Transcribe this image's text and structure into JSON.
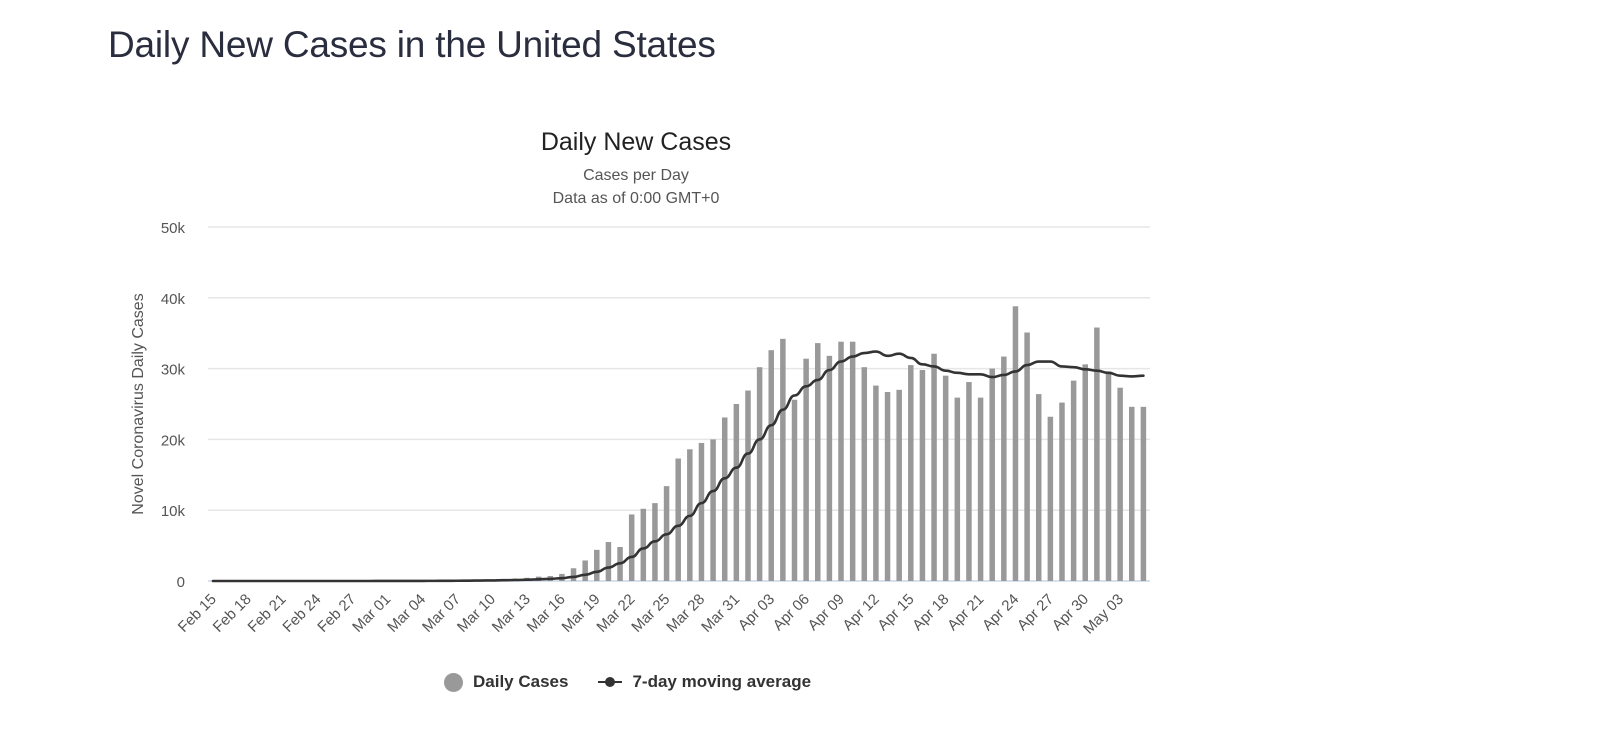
{
  "page": {
    "title": "Daily New Cases in the United States"
  },
  "chart_data": {
    "type": "bar",
    "title": "Daily New Cases",
    "subtitle": "Cases per Day",
    "subtitle2": "Data as of 0:00 GMT+0",
    "xlabel": "",
    "ylabel": "Novel Coronavirus Daily Cases",
    "ylim": [
      0,
      50000
    ],
    "yticks": [
      0,
      10000,
      20000,
      30000,
      40000,
      50000
    ],
    "ytick_labels": [
      "0",
      "10k",
      "20k",
      "30k",
      "40k",
      "50k"
    ],
    "grid": true,
    "legend_position": "bottom",
    "xtick_labels": [
      "Feb 15",
      "Feb 18",
      "Feb 21",
      "Feb 24",
      "Feb 27",
      "Mar 01",
      "Mar 04",
      "Mar 07",
      "Mar 10",
      "Mar 13",
      "Mar 16",
      "Mar 19",
      "Mar 22",
      "Mar 25",
      "Mar 28",
      "Mar 31",
      "Apr 03",
      "Apr 06",
      "Apr 09",
      "Apr 12",
      "Apr 15",
      "Apr 18",
      "Apr 21",
      "Apr 24",
      "Apr 27",
      "Apr 30",
      "May 03"
    ],
    "xtick_every": 3,
    "categories": [
      "Feb 15",
      "Feb 16",
      "Feb 17",
      "Feb 18",
      "Feb 19",
      "Feb 20",
      "Feb 21",
      "Feb 22",
      "Feb 23",
      "Feb 24",
      "Feb 25",
      "Feb 26",
      "Feb 27",
      "Feb 28",
      "Feb 29",
      "Mar 01",
      "Mar 02",
      "Mar 03",
      "Mar 04",
      "Mar 05",
      "Mar 06",
      "Mar 07",
      "Mar 08",
      "Mar 09",
      "Mar 10",
      "Mar 11",
      "Mar 12",
      "Mar 13",
      "Mar 14",
      "Mar 15",
      "Mar 16",
      "Mar 17",
      "Mar 18",
      "Mar 19",
      "Mar 20",
      "Mar 21",
      "Mar 22",
      "Mar 23",
      "Mar 24",
      "Mar 25",
      "Mar 26",
      "Mar 27",
      "Mar 28",
      "Mar 29",
      "Mar 30",
      "Mar 31",
      "Apr 01",
      "Apr 02",
      "Apr 03",
      "Apr 04",
      "Apr 05",
      "Apr 06",
      "Apr 07",
      "Apr 08",
      "Apr 09",
      "Apr 10",
      "Apr 11",
      "Apr 12",
      "Apr 13",
      "Apr 14",
      "Apr 15",
      "Apr 16",
      "Apr 17",
      "Apr 18",
      "Apr 19",
      "Apr 20",
      "Apr 21",
      "Apr 22",
      "Apr 23",
      "Apr 24",
      "Apr 25",
      "Apr 26",
      "Apr 27",
      "Apr 28",
      "Apr 29",
      "Apr 30",
      "May 01",
      "May 02",
      "May 03",
      "May 04",
      "May 05"
    ],
    "series": [
      {
        "name": "Daily Cases",
        "type": "bar",
        "color": "#999999",
        "values": [
          0,
          0,
          0,
          0,
          0,
          0,
          2,
          0,
          0,
          0,
          0,
          1,
          1,
          2,
          6,
          9,
          18,
          27,
          30,
          45,
          60,
          70,
          95,
          120,
          200,
          270,
          350,
          450,
          620,
          700,
          1000,
          1800,
          2900,
          4400,
          5500,
          4800,
          9400,
          10200,
          11000,
          13400,
          17300,
          18600,
          19500,
          20000,
          23100,
          25000,
          26900,
          30200,
          32600,
          34200,
          25600,
          31400,
          33600,
          31800,
          33800,
          33800,
          30200,
          27600,
          26700,
          27000,
          30500,
          29800,
          32100,
          29000,
          25900,
          28100,
          25900,
          30000,
          31700,
          38800,
          35100,
          26400,
          23200,
          25200,
          28300,
          30600,
          35800,
          29600,
          27300,
          24600,
          24600
        ]
      },
      {
        "name": "7-day moving average",
        "type": "line",
        "color": "#333333",
        "values": [
          0,
          0,
          0,
          0,
          0,
          0,
          0,
          0,
          0,
          0,
          0,
          0,
          1,
          1,
          2,
          3,
          5,
          9,
          13,
          19,
          27,
          37,
          49,
          64,
          82,
          109,
          141,
          180,
          235,
          300,
          400,
          580,
          880,
          1300,
          1900,
          2500,
          3400,
          4600,
          5600,
          6600,
          7800,
          9200,
          11000,
          12700,
          14500,
          16000,
          18000,
          20000,
          22000,
          24200,
          26200,
          27500,
          28400,
          29800,
          31000,
          31700,
          32200,
          32400,
          31800,
          32100,
          31500,
          30600,
          30300,
          29700,
          29400,
          29200,
          29200,
          28800,
          29100,
          29600,
          30500,
          31000,
          31000,
          30300,
          30200,
          29900,
          29700,
          29400,
          29000,
          28900,
          29000
        ]
      }
    ]
  }
}
